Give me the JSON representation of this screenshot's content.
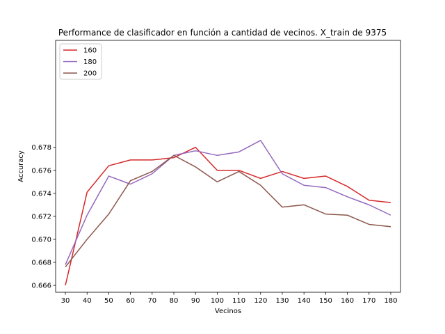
{
  "chart_data": {
    "type": "line",
    "title": "Performance de clasificador en función a cantidad de vecinos. X_train de 9375",
    "xlabel": "Vecinos",
    "ylabel": "Accuracy",
    "x": [
      30,
      40,
      50,
      60,
      70,
      80,
      90,
      100,
      110,
      120,
      130,
      140,
      150,
      160,
      170,
      180
    ],
    "x_ticks": [
      "30",
      "40",
      "50",
      "60",
      "70",
      "80",
      "90",
      "100",
      "110",
      "120",
      "130",
      "140",
      "150",
      "160",
      "170",
      "180"
    ],
    "xlim": [
      25.5,
      184.5
    ],
    "ylim": [
      0.6654,
      0.6873
    ],
    "y_ticks": [
      "0.666",
      "0.668",
      "0.670",
      "0.672",
      "0.674",
      "0.676",
      "0.678"
    ],
    "grid": false,
    "legend_position": "top-left",
    "series": [
      {
        "name": "160",
        "color": "#d62728",
        "values": [
          0.666,
          0.6741,
          0.6764,
          0.6769,
          0.6769,
          0.6771,
          0.678,
          0.676,
          0.676,
          0.6753,
          0.6759,
          0.6753,
          0.6755,
          0.6746,
          0.6734,
          0.6732
        ]
      },
      {
        "name": "180",
        "color": "#9467bd",
        "values": [
          0.6678,
          0.6721,
          0.6755,
          0.6748,
          0.6757,
          0.6773,
          0.6777,
          0.6773,
          0.6776,
          0.6786,
          0.6757,
          0.6747,
          0.6745,
          0.6737,
          0.673,
          0.6721
        ]
      },
      {
        "name": "200",
        "color": "#8c564b",
        "values": [
          0.6676,
          0.67,
          0.6722,
          0.6751,
          0.6759,
          0.6773,
          0.6763,
          0.675,
          0.6759,
          0.6747,
          0.6728,
          0.673,
          0.6722,
          0.6721,
          0.6713,
          0.6711
        ]
      }
    ]
  }
}
